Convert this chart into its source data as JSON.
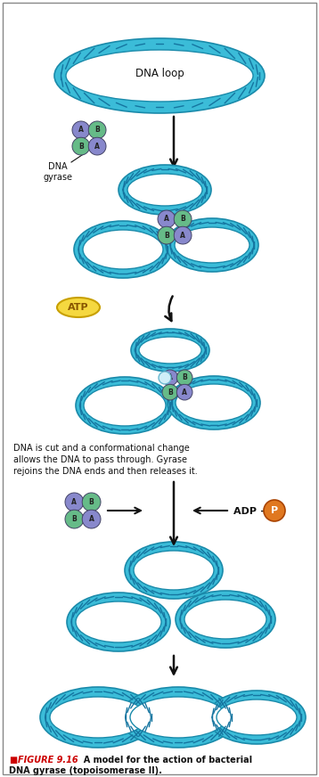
{
  "fig_width": 3.58,
  "fig_height": 8.72,
  "dpi": 100,
  "bg_color": "#ffffff",
  "border_color": "#888888",
  "dna_color": "#3bbcd8",
  "dna_color2": "#5dd0e8",
  "dna_edge_color": "#1a8aaa",
  "dna_inner_color": "#b8eaf8",
  "protein_A_color": "#8888cc",
  "protein_B_color": "#66bb88",
  "atp_color": "#f5d840",
  "atp_edge_color": "#c8a000",
  "atp_text_color": "#885500",
  "phosphate_color": "#e07820",
  "arrow_color": "#111111",
  "text_color": "#111111",
  "caption_figure_color": "#cc0000",
  "caption_figure_label": "FIGURE 9.16",
  "caption_text1": "A model for the action of bacterial",
  "caption_text2": "DNA gyrase (topoisomerase II).",
  "label_dna_loop": "DNA loop",
  "label_dna_gyrase": "DNA\ngyrase",
  "label_atp": "ATP",
  "label_adp": "ADP + ",
  "label_p": "P",
  "label_cut_line1": "DNA is cut and a conformational change",
  "label_cut_line2": "allows the DNA to pass through. Gyrase",
  "label_cut_line3": "rejoins the DNA ends and then releases it."
}
